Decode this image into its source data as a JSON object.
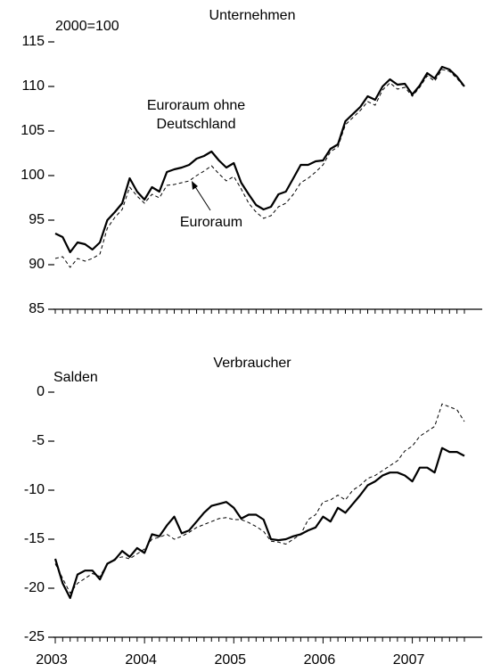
{
  "chart_data": [
    {
      "type": "line",
      "title": "Unternehmen",
      "unit_label": "2000=100",
      "ylim": [
        85,
        115
      ],
      "yticks": [
        85,
        90,
        95,
        100,
        105,
        110,
        115
      ],
      "categories": [
        null,
        null,
        null,
        null,
        null,
        null,
        null,
        null,
        null,
        null,
        null,
        null,
        null,
        null,
        null,
        null,
        null,
        null,
        null,
        null,
        null,
        null,
        null,
        null,
        null,
        null,
        null,
        null,
        null,
        null,
        null,
        null,
        null,
        null,
        null,
        null,
        null,
        null,
        null,
        null,
        null,
        null,
        null,
        null,
        null,
        null,
        null,
        null,
        null,
        null,
        null,
        null,
        null,
        null,
        null,
        null
      ],
      "series": [
        {
          "name": "Euroraum ohne Deutschland",
          "color": "#000000",
          "dashed": false,
          "values": [
            93.5,
            93.1,
            91.4,
            92.5,
            92.3,
            91.7,
            92.5,
            95,
            95.9,
            96.9,
            99.7,
            98.2,
            97.3,
            98.7,
            98.2,
            100.4,
            100.7,
            100.9,
            101.2,
            101.9,
            102.2,
            102.7,
            101.7,
            100.9,
            101.4,
            99.2,
            97.9,
            96.7,
            96.2,
            96.5,
            97.9,
            98.2,
            99.7,
            101.2,
            101.2,
            101.6,
            101.7,
            103,
            103.5,
            106.1,
            106.9,
            107.7,
            108.9,
            108.5,
            110,
            110.8,
            110.2,
            110.3,
            109.1,
            110.1,
            111.5,
            110.9,
            112.2,
            111.9,
            111.1,
            110
          ]
        },
        {
          "name": "Euroraum",
          "color": "#000000",
          "dashed": true,
          "values": [
            90.7,
            90.9,
            89.7,
            90.7,
            90.4,
            90.7,
            91.2,
            94.1,
            95.3,
            96.2,
            98.7,
            97.7,
            96.9,
            97.9,
            97.5,
            98.9,
            99,
            99.2,
            99.4,
            100,
            100.5,
            101.1,
            100.2,
            99.4,
            99.9,
            98.5,
            96.9,
            95.9,
            95.2,
            95.5,
            96.5,
            96.9,
            97.9,
            99.2,
            99.7,
            100.4,
            101.2,
            102.7,
            103.2,
            105.7,
            106.5,
            107.3,
            108.3,
            107.9,
            109.6,
            110.4,
            109.7,
            109.9,
            108.9,
            109.9,
            111.2,
            110.6,
            111.9,
            111.7,
            110.9,
            109.9
          ]
        }
      ]
    },
    {
      "type": "line",
      "title": "Verbraucher",
      "unit_label": "Salden",
      "ylim": [
        -25,
        0
      ],
      "yticks": [
        -25,
        -20,
        -15,
        -10,
        -5,
        0
      ],
      "categories": [
        "2003",
        null,
        null,
        null,
        null,
        null,
        null,
        null,
        null,
        null,
        null,
        null,
        "2004",
        null,
        null,
        null,
        null,
        null,
        null,
        null,
        null,
        null,
        null,
        null,
        "2005",
        null,
        null,
        null,
        null,
        null,
        null,
        null,
        null,
        null,
        null,
        null,
        "2006",
        null,
        null,
        null,
        null,
        null,
        null,
        null,
        null,
        null,
        null,
        null,
        "2007",
        null,
        null,
        null,
        null,
        null,
        null,
        null
      ],
      "series": [
        {
          "color": "#000000",
          "dashed": false,
          "values": [
            -17,
            -19.5,
            -21,
            -18.6,
            -18.2,
            -18.2,
            -19.1,
            -17.5,
            -17.1,
            -16.2,
            -16.8,
            -15.9,
            -16.4,
            -14.5,
            -14.7,
            -13.6,
            -12.7,
            -14.4,
            -14.1,
            -13.2,
            -12.3,
            -11.6,
            -11.4,
            -11.2,
            -11.8,
            -12.9,
            -12.5,
            -12.5,
            -13,
            -15,
            -15.1,
            -15,
            -14.7,
            -14.5,
            -14.1,
            -13.8,
            -12.7,
            -13.2,
            -11.8,
            -12.3,
            -11.4,
            -10.5,
            -9.5,
            -9.1,
            -8.5,
            -8.2,
            -8.2,
            -8.5,
            -9.1,
            -7.7,
            -7.7,
            -8.2,
            -5.7,
            -6.1,
            -6.1,
            -6.5
          ]
        },
        {
          "color": "#000000",
          "dashed": true,
          "values": [
            -17.5,
            -19,
            -20.5,
            -19.5,
            -19,
            -18.5,
            -18.8,
            -17.5,
            -17,
            -16.8,
            -17,
            -16.5,
            -16,
            -15,
            -14.8,
            -14.5,
            -15,
            -14.7,
            -14.3,
            -13.8,
            -13.5,
            -13.2,
            -12.9,
            -12.8,
            -13,
            -13,
            -13.3,
            -13.7,
            -14.2,
            -15.2,
            -15.3,
            -15.5,
            -15,
            -14.5,
            -13,
            -12.5,
            -11.2,
            -11,
            -10.5,
            -11,
            -10,
            -9.5,
            -8.8,
            -8.5,
            -8,
            -7.5,
            -7,
            -6,
            -5.5,
            -4.5,
            -4,
            -3.5,
            -1.2,
            -1.5,
            -1.8,
            -3
          ]
        }
      ]
    }
  ]
}
